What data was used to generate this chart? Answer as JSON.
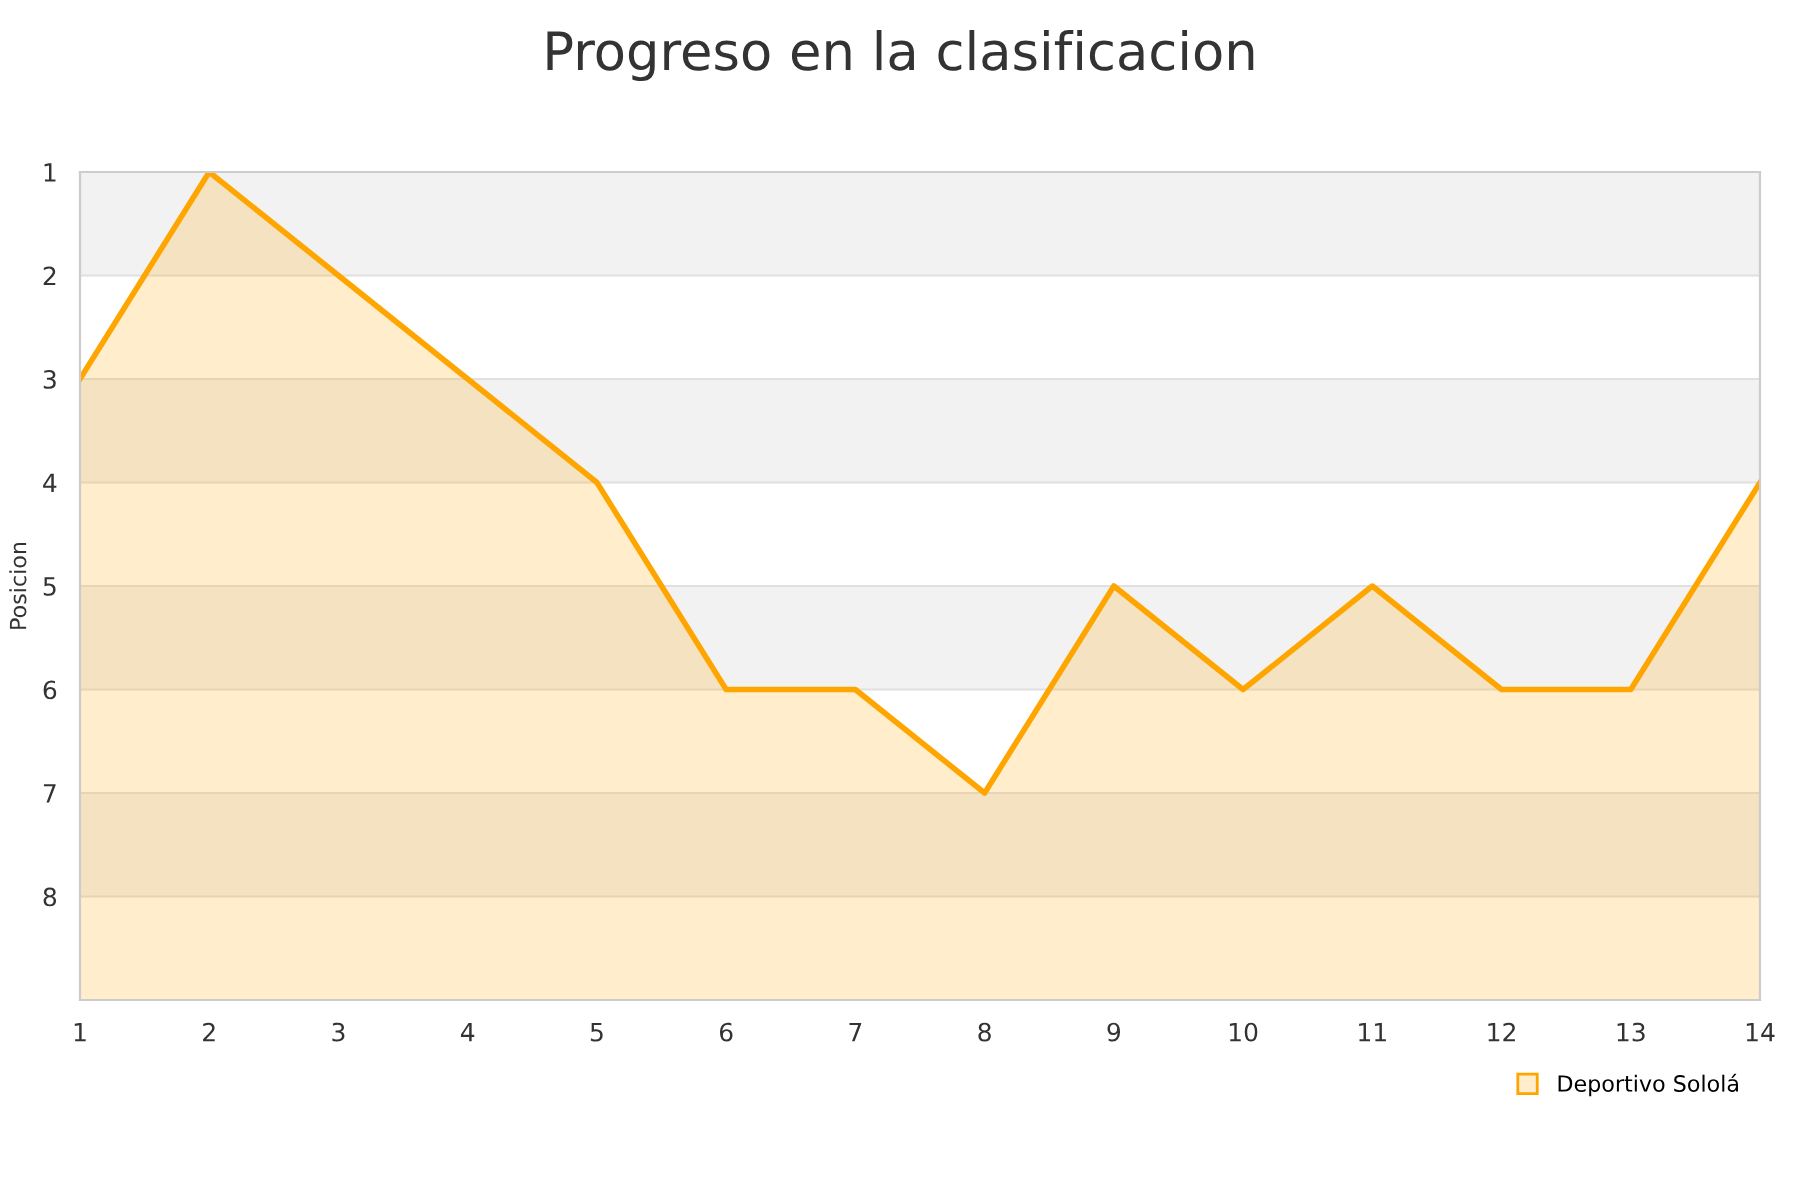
{
  "chart_data": {
    "type": "area",
    "title": "Progreso en la clasificacion",
    "ylabel": "Posicion",
    "x": [
      1,
      2,
      3,
      4,
      5,
      6,
      7,
      8,
      9,
      10,
      11,
      12,
      13,
      14
    ],
    "series": [
      {
        "name": "Deportivo Sololá",
        "color": "#ffa500",
        "values": [
          3,
          1,
          2,
          3,
          4,
          6,
          6,
          7,
          5,
          6,
          5,
          6,
          6,
          4
        ]
      }
    ],
    "xlim": [
      1,
      14
    ],
    "xticks": [
      1,
      2,
      3,
      4,
      5,
      6,
      7,
      8,
      9,
      10,
      11,
      12,
      13,
      14
    ],
    "ylim": [
      9,
      1
    ],
    "yticks": [
      1,
      2,
      3,
      4,
      5,
      6,
      7,
      8
    ],
    "bands": [
      {
        "axis": "y",
        "from": 1,
        "to": 2,
        "color": "#f2f2f2"
      },
      {
        "axis": "y",
        "from": 3,
        "to": 4,
        "color": "#f2f2f2"
      },
      {
        "axis": "y",
        "from": 5,
        "to": 6,
        "color": "#f2f2f2"
      },
      {
        "axis": "y",
        "from": 7,
        "to": 8,
        "color": "#f2f2f2"
      }
    ],
    "grid": "y",
    "legend": "bottom right"
  }
}
